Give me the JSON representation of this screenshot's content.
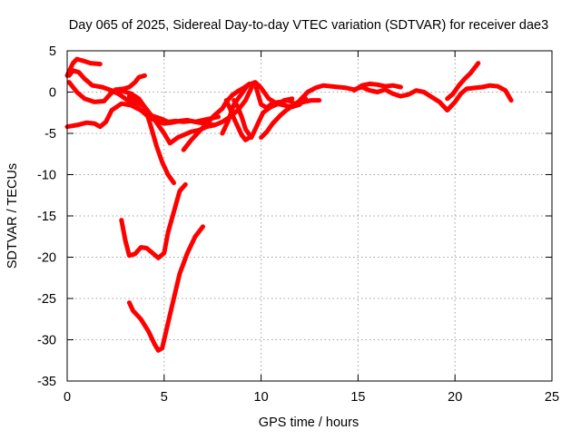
{
  "chart_data": {
    "type": "line",
    "title": "Day 065 of 2025, Sidereal Day-to-day VTEC variation (SDTVAR) for receiver dae3",
    "xlabel": "GPS time / hours",
    "ylabel": "SDTVAR / TECUs",
    "xlim": [
      0,
      25
    ],
    "ylim": [
      -35,
      5
    ],
    "xticks": [
      0,
      5,
      10,
      15,
      20,
      25
    ],
    "yticks": [
      5,
      0,
      -5,
      -10,
      -15,
      -20,
      -25,
      -30,
      -35
    ],
    "grid": true,
    "legend": "none",
    "color": "#ff0000",
    "series": [
      {
        "x": [
          0.0,
          0.3,
          0.5,
          0.8,
          1.2,
          1.7
        ],
        "y": [
          2.0,
          3.5,
          4.0,
          3.8,
          3.5,
          3.4
        ]
      },
      {
        "x": [
          0.1,
          0.3,
          0.6,
          0.9,
          1.3,
          1.8,
          2.3,
          2.7,
          3.0,
          3.4,
          3.8,
          4.2,
          4.6,
          5.0,
          5.4,
          5.8,
          6.2,
          6.6,
          7.0,
          7.4,
          7.8
        ],
        "y": [
          2.0,
          2.6,
          2.4,
          1.6,
          0.8,
          0.6,
          0.2,
          -0.3,
          -0.8,
          -1.5,
          -2.2,
          -3.0,
          -3.5,
          -3.8,
          -3.7,
          -3.5,
          -3.4,
          -3.6,
          -3.4,
          -3.2,
          -3.0
        ]
      },
      {
        "x": [
          0.1,
          0.5,
          0.9,
          1.4,
          1.9,
          2.2,
          2.5,
          2.9,
          3.2,
          3.5,
          3.7,
          4.0
        ],
        "y": [
          1.2,
          0.0,
          -0.8,
          -1.2,
          -1.1,
          -0.3,
          0.3,
          0.4,
          0.6,
          1.2,
          1.8,
          2.0
        ]
      },
      {
        "x": [
          0.0,
          0.5,
          1.0,
          1.4,
          1.7,
          2.0,
          2.3,
          2.8,
          3.3,
          3.8,
          4.3,
          4.8,
          5.2,
          5.6,
          6.0,
          6.4,
          6.8,
          7.2,
          7.6,
          8.0,
          8.4,
          8.8,
          9.2,
          9.5
        ],
        "y": [
          -4.2,
          -4.0,
          -3.7,
          -3.8,
          -4.2,
          -3.6,
          -2.2,
          -1.4,
          -1.6,
          -2.2,
          -2.8,
          -3.2,
          -3.6,
          -3.5,
          -3.6,
          -3.5,
          -3.7,
          -3.8,
          -4.0,
          -3.6,
          -3.0,
          -2.2,
          -1.0,
          0.5
        ]
      },
      {
        "x": [
          2.5,
          2.9,
          3.3,
          3.7,
          4.0,
          4.3,
          4.6,
          4.9,
          5.2,
          5.5
        ],
        "y": [
          0.3,
          0.1,
          -0.2,
          -0.8,
          -1.8,
          -4.0,
          -6.5,
          -8.5,
          -10.0,
          -11.0
        ]
      },
      {
        "x": [
          3.2,
          3.6,
          4.0,
          4.4,
          4.7,
          5.0,
          5.3,
          5.7,
          6.0,
          6.4,
          6.8,
          7.2,
          7.6
        ],
        "y": [
          -0.5,
          -1.2,
          -1.8,
          -3.0,
          -4.0,
          -5.0,
          -6.2,
          -5.5,
          -5.2,
          -4.8,
          -4.6,
          -4.2,
          -4.0
        ]
      },
      {
        "x": [
          2.8,
          3.0,
          3.2,
          3.5,
          3.8,
          4.1,
          4.4,
          4.7,
          5.0,
          5.2,
          5.5,
          5.8,
          6.1
        ],
        "y": [
          -15.5,
          -18.0,
          -19.8,
          -19.6,
          -18.8,
          -18.9,
          -19.5,
          -20.1,
          -19.5,
          -17.0,
          -14.5,
          -12.0,
          -11.2
        ]
      },
      {
        "x": [
          3.2,
          3.4,
          3.8,
          4.2,
          4.5,
          4.7,
          4.9,
          5.1,
          5.4,
          5.8,
          6.2,
          6.6,
          7.0
        ],
        "y": [
          -25.5,
          -26.5,
          -27.5,
          -29.0,
          -30.5,
          -31.3,
          -31.0,
          -29.0,
          -26.0,
          -22.0,
          -19.5,
          -17.5,
          -16.3
        ]
      },
      {
        "x": [
          6.0,
          6.4,
          6.8,
          7.2,
          7.6,
          8.0,
          8.2,
          8.5,
          8.8,
          9.1,
          9.4,
          9.7,
          10.0,
          10.3,
          10.6,
          11.0,
          11.4,
          11.8,
          12.2,
          12.6,
          13.0
        ],
        "y": [
          -7.0,
          -5.8,
          -4.8,
          -3.8,
          -2.8,
          -2.0,
          -1.2,
          -0.4,
          0.1,
          0.5,
          1.0,
          0.9,
          -1.5,
          -1.9,
          -1.3,
          -1.2,
          -1.0,
          -1.5,
          -1.2,
          -1.0,
          -1.0
        ]
      },
      {
        "x": [
          8.0,
          8.3,
          8.6,
          9.0,
          9.3,
          9.7,
          10.0,
          10.4,
          10.8,
          11.2,
          11.6,
          12.0
        ],
        "y": [
          -5.0,
          -3.5,
          -1.5,
          -0.2,
          0.8,
          1.2,
          0.5,
          -0.8,
          -1.4,
          -1.6,
          -1.8,
          -1.5
        ]
      },
      {
        "x": [
          8.6,
          8.8,
          9.0,
          9.2,
          9.5,
          9.8,
          10.1,
          10.5,
          10.9,
          11.2,
          11.6
        ],
        "y": [
          -1.0,
          -1.8,
          -3.0,
          -4.5,
          -5.5,
          -4.0,
          -2.5,
          -1.8,
          -1.4,
          -1.0,
          -0.8
        ]
      },
      {
        "x": [
          8.2,
          8.4,
          8.6,
          8.8,
          9.0,
          9.2,
          9.4
        ],
        "y": [
          -1.0,
          -2.0,
          -3.2,
          -4.2,
          -5.2,
          -5.8,
          -5.5
        ]
      },
      {
        "x": [
          10.0,
          10.3,
          10.6,
          11.0,
          11.3,
          11.6,
          11.9,
          12.3
        ],
        "y": [
          -5.5,
          -4.8,
          -3.8,
          -2.8,
          -2.2,
          -1.7,
          -1.2,
          -0.8
        ]
      },
      {
        "x": [
          12.0,
          12.4,
          12.8,
          13.2,
          13.6,
          14.0,
          14.4,
          14.8,
          15.2,
          15.6,
          16.0,
          16.4,
          16.8,
          17.2,
          17.6,
          18.0,
          18.4,
          18.8,
          19.2,
          19.6,
          20.0,
          20.3,
          20.6,
          21.0,
          21.4,
          21.8,
          22.2,
          22.6,
          22.9
        ],
        "y": [
          -1.0,
          0.0,
          0.5,
          0.8,
          0.7,
          0.6,
          0.5,
          0.3,
          0.6,
          0.2,
          0.0,
          0.3,
          -0.2,
          -0.5,
          -0.3,
          0.2,
          0.0,
          -0.6,
          -1.2,
          -2.2,
          -1.2,
          -0.2,
          0.4,
          0.5,
          0.6,
          0.8,
          0.7,
          0.2,
          -1.0
        ]
      },
      {
        "x": [
          14.8,
          15.2,
          15.6,
          16.0,
          16.4,
          16.8,
          17.2
        ],
        "y": [
          0.2,
          0.8,
          1.0,
          0.9,
          0.7,
          0.8,
          0.6
        ]
      },
      {
        "x": [
          19.6,
          19.9,
          20.2,
          20.5,
          20.8,
          21.1,
          21.2
        ],
        "y": [
          -0.8,
          -0.2,
          0.8,
          1.6,
          2.3,
          3.2,
          3.5
        ]
      }
    ]
  }
}
